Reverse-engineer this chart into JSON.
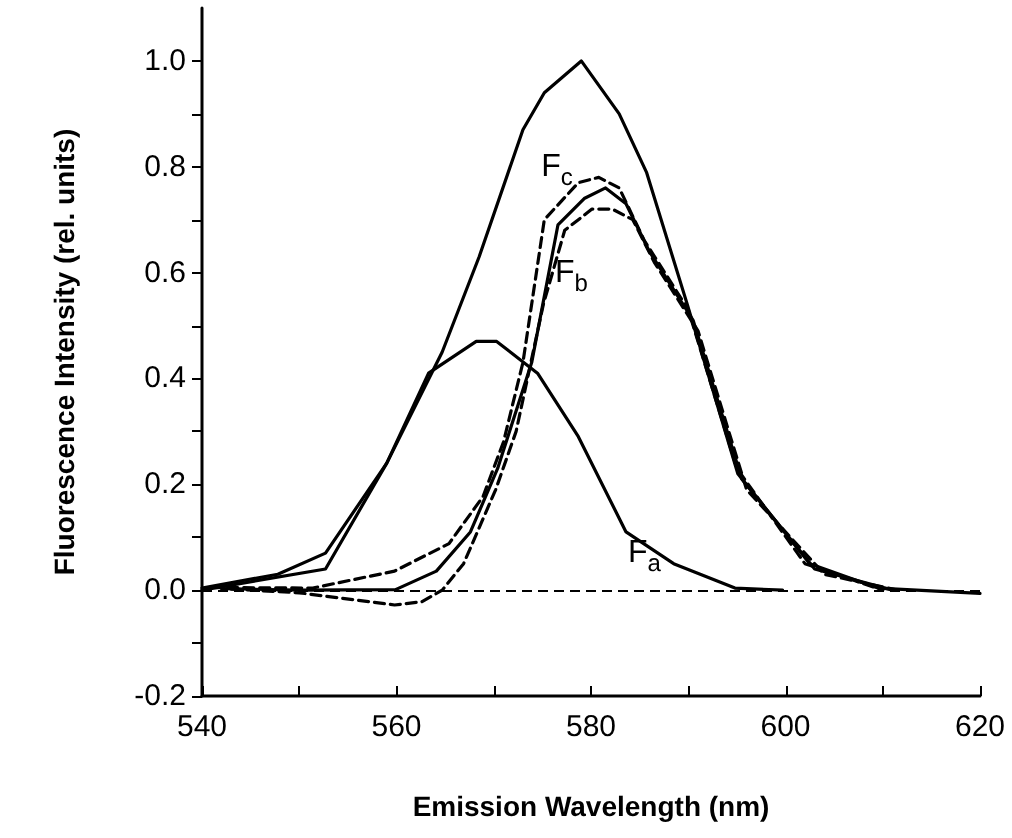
{
  "chart_data": {
    "type": "line",
    "xlabel": "Emission Wavelength (nm)",
    "ylabel": "Fluorescence Intensity (rel. units)",
    "xlim": [
      540,
      620
    ],
    "ylim": [
      -0.2,
      1.1
    ],
    "xticks": [
      540,
      {
        "value": 550,
        "label": null
      },
      560,
      {
        "value": 570,
        "label": null
      },
      580,
      {
        "value": 590,
        "label": null
      },
      600,
      {
        "value": 610,
        "label": null
      },
      620
    ],
    "yticks": [
      {
        "value": -0.2,
        "label": "-0.2"
      },
      {
        "value": -0.1,
        "label": null
      },
      {
        "value": 0,
        "label": "0.0"
      },
      {
        "value": 0.1,
        "label": null
      },
      {
        "value": 0.2,
        "label": "0.2"
      },
      {
        "value": 0.3,
        "label": null
      },
      {
        "value": 0.4,
        "label": "0.4"
      },
      {
        "value": 0.5,
        "label": null
      },
      {
        "value": 0.6,
        "label": "0.6"
      },
      {
        "value": 0.7,
        "label": null
      },
      {
        "value": 0.8,
        "label": "0.8"
      },
      {
        "value": 0.9,
        "label": null
      },
      {
        "value": 1.0,
        "label": "1.0"
      }
    ],
    "grid": false,
    "marker": "none",
    "series": [
      {
        "color": "#000000",
        "line_style": "solid",
        "x": [
          540,
          547.8,
          552.7,
          559,
          564.7,
          568.5,
          573,
          575.2,
          579,
          582.9,
          585.7,
          589.9,
          595.1,
          602.5,
          609.5,
          620
        ],
        "values": [
          0.004,
          0.03,
          0.07,
          0.24,
          0.45,
          0.63,
          0.87,
          0.94,
          1.0,
          0.9,
          0.79,
          0.54,
          0.22,
          0.05,
          0.004,
          -0.006
        ]
      },
      {
        "color": "#000000",
        "line_style": "solid",
        "x": [
          540,
          552.7,
          559,
          563.3,
          568.2,
          570.3,
          574.5,
          578.7,
          583.6,
          588.5,
          594.8,
          599.7
        ],
        "values": [
          0,
          0.04,
          0.24,
          0.41,
          0.47,
          0.47,
          0.41,
          0.29,
          0.11,
          0.05,
          0.004,
          0
        ]
      },
      {
        "color": "#000000",
        "line_style": "dashed",
        "x": [
          541,
          551.4,
          559.8,
          565.4,
          568.9,
          571,
          573,
          575.2,
          578.7,
          580.8,
          582.9,
          585.5,
          590,
          595,
          602,
          610
        ],
        "values": [
          0.005,
          0.004,
          0.036,
          0.088,
          0.177,
          0.28,
          0.43,
          0.7,
          0.77,
          0.78,
          0.76,
          0.66,
          0.53,
          0.23,
          0.05,
          0
        ]
      },
      {
        "color": "#000000",
        "line_style": "solid",
        "x": [
          542,
          550,
          559.9,
          564.1,
          567.6,
          570.4,
          573.9,
          576.6,
          579.3,
          581.5,
          583.6,
          586,
          590.5,
          595.5,
          603,
          611
        ],
        "values": [
          0.003,
          0,
          0.001,
          0.036,
          0.11,
          0.23,
          0.43,
          0.69,
          0.74,
          0.76,
          0.73,
          0.64,
          0.51,
          0.21,
          0.04,
          0
        ]
      },
      {
        "color": "#000000",
        "line_style": "dashed",
        "x": [
          543,
          550,
          559.8,
          562.6,
          564.7,
          566.9,
          570.2,
          572.3,
          575.1,
          577.3,
          580.1,
          582.2,
          584.3,
          586.5,
          591,
          596,
          604,
          612
        ],
        "values": [
          0.002,
          -0.005,
          -0.028,
          -0.022,
          0,
          0.05,
          0.19,
          0.3,
          0.54,
          0.68,
          0.72,
          0.72,
          0.7,
          0.62,
          0.49,
          0.19,
          0.03,
          -0.002
        ]
      }
    ],
    "ref_lines": [
      {
        "axis": "y",
        "value": 0,
        "color": "#000000",
        "line_style": "dashed"
      }
    ],
    "annotations": [
      {
        "text": "F$_{c}$",
        "x": 576.5,
        "y": 0.8
      },
      {
        "text": "F$_{b}$",
        "x": 578,
        "y": 0.6
      },
      {
        "text": "F$_{a}$",
        "x": 585.5,
        "y": 0.07
      }
    ]
  }
}
